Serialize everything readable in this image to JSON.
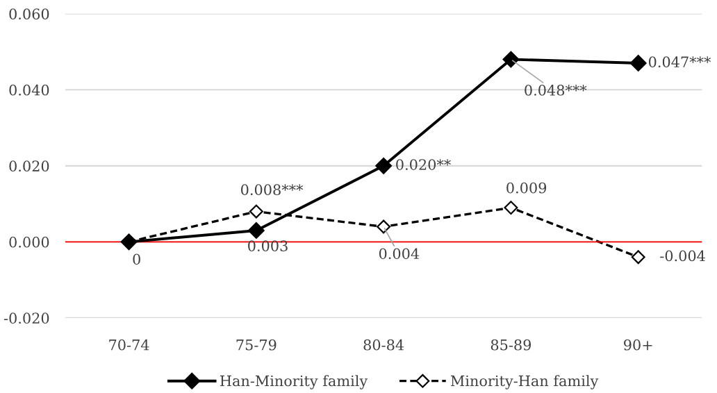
{
  "chart_data": {
    "type": "line",
    "categories": [
      "70-74",
      "75-79",
      "80-84",
      "85-89",
      "90+"
    ],
    "series": [
      {
        "name": "Han-Minority family",
        "color": "#000000",
        "line_style": "solid",
        "marker": "diamond",
        "values": [
          0,
          0.003,
          0.02,
          0.048,
          0.047
        ],
        "value_labels": [
          "0",
          "0.003",
          "0.020**",
          "0.048***",
          "0.047***"
        ]
      },
      {
        "name": "Minority-Han family",
        "color": "#000000",
        "line_style": "dashed",
        "marker": "diamond",
        "values": [
          0,
          0.008,
          0.004,
          0.009,
          -0.004
        ],
        "value_labels": [
          null,
          "0.008***",
          "0.004",
          "0.009",
          "-0.004"
        ]
      }
    ],
    "ylim": [
      -0.02,
      0.06
    ],
    "yticks": [
      {
        "value": -0.02,
        "label": "-0.020"
      },
      {
        "value": 0,
        "label": "0.000"
      },
      {
        "value": 0.02,
        "label": "0.020"
      },
      {
        "value": 0.04,
        "label": "0.040"
      },
      {
        "value": 0.06,
        "label": "0.060"
      }
    ],
    "ref_lines": [
      {
        "axis": "y",
        "value": 0,
        "color": "#ff0000"
      }
    ],
    "grid": "y",
    "legend": "bottom"
  }
}
